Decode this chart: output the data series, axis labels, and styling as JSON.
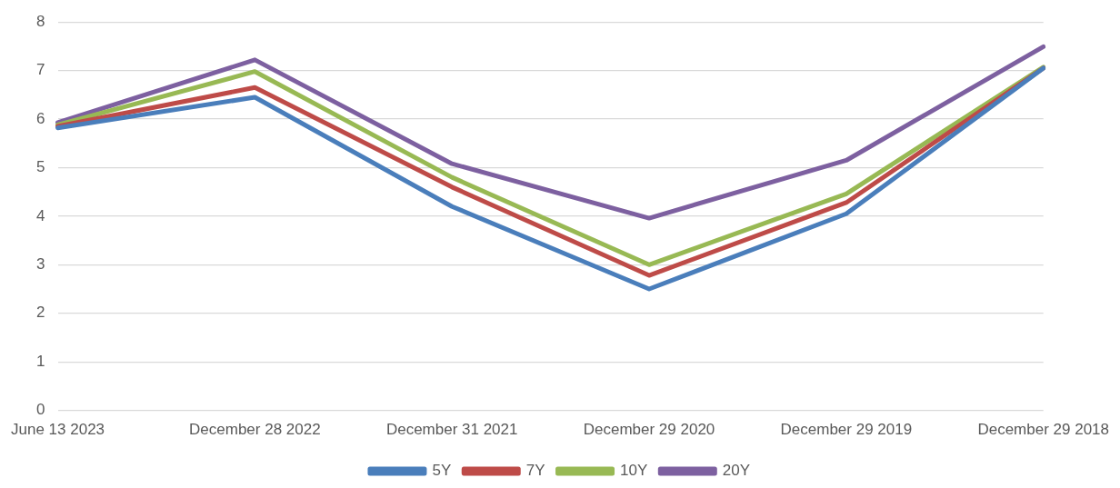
{
  "chart_data": {
    "type": "line",
    "categories": [
      "June 13 2023",
      "December 28 2022",
      "December 31 2021",
      "December 29 2020",
      "December 29 2019",
      "December 29 2018"
    ],
    "series": [
      {
        "name": "5Y",
        "color": "#4a7ebb",
        "values": [
          5.82,
          6.45,
          4.2,
          2.5,
          4.05,
          7.05
        ]
      },
      {
        "name": "7Y",
        "color": "#be4b48",
        "values": [
          5.85,
          6.65,
          4.6,
          2.78,
          4.28,
          7.05
        ]
      },
      {
        "name": "10Y",
        "color": "#98b954",
        "values": [
          5.88,
          6.98,
          4.8,
          3.0,
          4.46,
          7.07
        ]
      },
      {
        "name": "20Y",
        "color": "#7d60a0",
        "values": [
          5.93,
          7.22,
          5.08,
          3.96,
          5.15,
          7.49
        ]
      }
    ],
    "ylim": [
      0,
      8
    ],
    "yticks": [
      0,
      1,
      2,
      3,
      4,
      5,
      6,
      7,
      8
    ],
    "grid": "y",
    "legend": "bottom",
    "marker": "none",
    "line_style": "solid"
  }
}
